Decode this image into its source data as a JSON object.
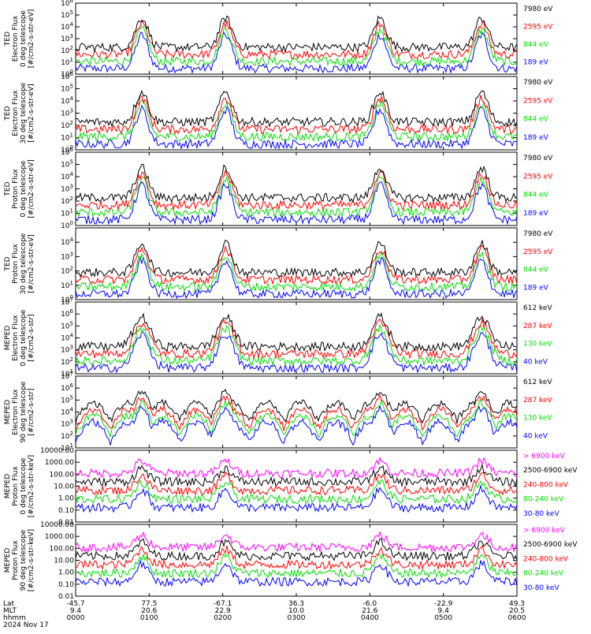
{
  "colors": {
    "black": "#000000",
    "red": "#ff0000",
    "green": "#00dd00",
    "blue": "#0000ff",
    "magenta": "#ff00ff"
  },
  "footer": {
    "row_labels": [
      "Lat",
      "MLT",
      "hhmm",
      "2024 Nov 17"
    ],
    "lat": [
      "-45.7",
      "77.5",
      "-67.1",
      "36.3",
      "-6.0",
      "-22.9",
      "49.3"
    ],
    "mlt": [
      "9.4",
      "20.6",
      "22.9",
      "10.0",
      "21.6",
      "9.4",
      "20.5"
    ],
    "hhmm": [
      "0000",
      "0100",
      "0200",
      "0300",
      "0400",
      "0500",
      "0600"
    ]
  },
  "chart_data": [
    {
      "type": "line",
      "ylabel_lines": [
        "TED",
        "Electron Flux",
        "0 deg telescope",
        "[#/cm2-s-str-eV]"
      ],
      "ylim_log": [
        0,
        6
      ],
      "tick_labels": [
        "10^0",
        "10^1",
        "10^2",
        "10^3",
        "10^4",
        "10^5",
        "10^6"
      ],
      "legend": [
        {
          "label": "7980 eV",
          "color": "black"
        },
        {
          "label": "2595 eV",
          "color": "red"
        },
        {
          "label": "844 eV",
          "color": "green"
        },
        {
          "label": "189 eV",
          "color": "blue"
        }
      ]
    },
    {
      "type": "line",
      "ylabel_lines": [
        "TED",
        "Electron Flux",
        "30 deg telescope",
        "[#/cm2-s-str-eV]"
      ],
      "ylim_log": [
        0,
        6
      ],
      "tick_labels": [
        "10^0",
        "10^1",
        "10^2",
        "10^3",
        "10^4",
        "10^5",
        "10^6"
      ],
      "legend": [
        {
          "label": "7980 eV",
          "color": "black"
        },
        {
          "label": "2595 eV",
          "color": "red"
        },
        {
          "label": "844 eV",
          "color": "green"
        },
        {
          "label": "189 eV",
          "color": "blue"
        }
      ]
    },
    {
      "type": "line",
      "ylabel_lines": [
        "TED",
        "Proton Flux",
        "0 deg telescope",
        "[#/cm2-s-str-eV]"
      ],
      "ylim_log": [
        0,
        6
      ],
      "tick_labels": [
        "10^0",
        "10^1",
        "10^2",
        "10^3",
        "10^4",
        "10^5",
        "10^6"
      ],
      "legend": [
        {
          "label": "7980 eV",
          "color": "black"
        },
        {
          "label": "2595 eV",
          "color": "red"
        },
        {
          "label": "844 eV",
          "color": "green"
        },
        {
          "label": "189 eV",
          "color": "blue"
        }
      ]
    },
    {
      "type": "line",
      "ylabel_lines": [
        "TED",
        "Proton Flux",
        "30 deg telescope",
        "[#/cm2-s-str-eV]"
      ],
      "ylim_log": [
        0,
        5
      ],
      "tick_labels": [
        "10^0",
        "10^1",
        "10^2",
        "10^3",
        "10^4"
      ],
      "legend": [
        {
          "label": "7980 eV",
          "color": "black"
        },
        {
          "label": "2595 eV",
          "color": "red"
        },
        {
          "label": "844 eV",
          "color": "green"
        },
        {
          "label": "189 eV",
          "color": "blue"
        }
      ]
    },
    {
      "type": "line",
      "ylabel_lines": [
        "MEPED",
        "Electron Flux",
        "0 deg telescope",
        "[#/cm2-s-str]"
      ],
      "ylim_log": [
        1,
        7
      ],
      "tick_labels": [
        "10^1",
        "10^2",
        "10^3",
        "10^4",
        "10^5",
        "10^6",
        "10^7"
      ],
      "legend": [
        {
          "label": "612 keV",
          "color": "black"
        },
        {
          "label": "287 keV",
          "color": "red"
        },
        {
          "label": "130 keV",
          "color": "green"
        },
        {
          "label": "40 keV",
          "color": "blue"
        }
      ]
    },
    {
      "type": "line",
      "ylabel_lines": [
        "MEPED",
        "Electron Flux",
        "90 deg telescope",
        "[#/cm2-s-str]"
      ],
      "ylim_log": [
        1,
        7
      ],
      "tick_labels": [
        "10^1",
        "10^2",
        "10^3",
        "10^4",
        "10^5",
        "10^6",
        "10^7"
      ],
      "legend": [
        {
          "label": "612 keV",
          "color": "black"
        },
        {
          "label": "287 keV",
          "color": "red"
        },
        {
          "label": "130 keV",
          "color": "green"
        },
        {
          "label": "40 keV",
          "color": "blue"
        }
      ]
    },
    {
      "type": "line",
      "ylabel_lines": [
        "MEPED",
        "Proton Flux",
        "0 deg telescope",
        "[#/cm2-s-str-keV]"
      ],
      "ylim_log": [
        -2,
        4
      ],
      "tick_labels": [
        "0.01",
        "0.10",
        "1.00",
        "10.00",
        "100.00",
        "1000.00",
        "10000.00"
      ],
      "legend": [
        {
          "label": "> 6900 keV",
          "color": "magenta"
        },
        {
          "label": "2500-6900 keV",
          "color": "black"
        },
        {
          "label": "240-800 keV",
          "color": "red"
        },
        {
          "label": "80-240 keV",
          "color": "green"
        },
        {
          "label": "30-80 keV",
          "color": "blue"
        }
      ]
    },
    {
      "type": "line",
      "ylabel_lines": [
        "MEPED",
        "Proton Flux",
        "90 deg telescope",
        "[#/cm2-s-str-keV]"
      ],
      "ylim_log": [
        -2,
        4
      ],
      "tick_labels": [
        "0.01",
        "0.10",
        "1.00",
        "10.00",
        "100.00",
        "1000.00",
        "10000.00"
      ],
      "legend": [
        {
          "label": "> 6900 keV",
          "color": "magenta"
        },
        {
          "label": "2500-6900 keV",
          "color": "black"
        },
        {
          "label": "240-800 keV",
          "color": "red"
        },
        {
          "label": "80-240 keV",
          "color": "green"
        },
        {
          "label": "30-80 keV",
          "color": "blue"
        }
      ]
    }
  ]
}
